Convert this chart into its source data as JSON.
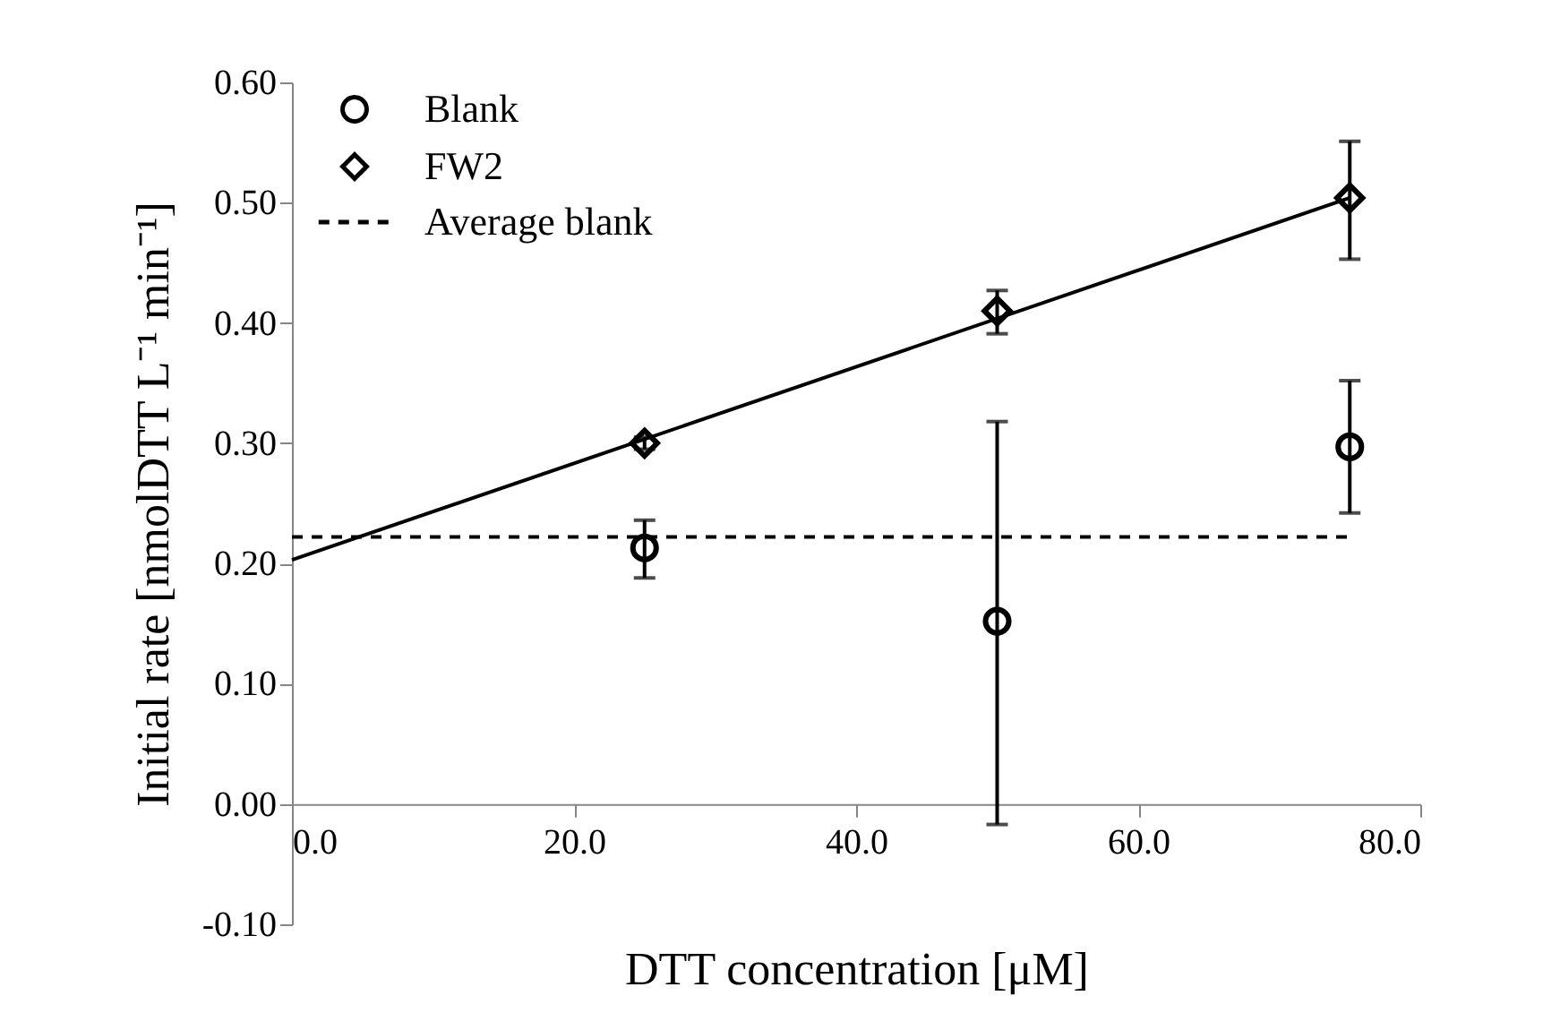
{
  "chart_data": {
    "type": "scatter",
    "xlabel": "DTT concentration [μM]",
    "ylabel": "Initial rate [nmolDTT L⁻¹ min⁻¹]",
    "xlim": [
      0,
      80
    ],
    "ylim": [
      -0.1,
      0.6
    ],
    "xticks": [
      {
        "value": 0,
        "label": "0.0"
      },
      {
        "value": 20,
        "label": "20.0"
      },
      {
        "value": 40,
        "label": "40.0"
      },
      {
        "value": 60,
        "label": "60.0"
      },
      {
        "value": 80,
        "label": "80.0"
      }
    ],
    "yticks": [
      {
        "value": -0.1,
        "label": "-0.10"
      },
      {
        "value": 0,
        "label": "0.00"
      },
      {
        "value": 0.1,
        "label": "0.10"
      },
      {
        "value": 0.2,
        "label": "0.20"
      },
      {
        "value": 0.3,
        "label": "0.30"
      },
      {
        "value": 0.4,
        "label": "0.40"
      },
      {
        "value": 0.5,
        "label": "0.50"
      },
      {
        "value": 0.6,
        "label": "0.60"
      }
    ],
    "series": [
      {
        "name": "Blank",
        "color": "#000000",
        "marker": "circle",
        "x": [
          25,
          50,
          75
        ],
        "values": [
          0.213,
          0.152,
          0.297
        ],
        "errors": [
          [
            0.188,
            0.236
          ],
          [
            -0.017,
            0.318
          ],
          [
            0.242,
            0.352
          ]
        ]
      },
      {
        "name": "FW2",
        "color": "#000000",
        "marker": "diamond",
        "x": [
          25,
          50,
          75
        ],
        "values": [
          0.3,
          0.41,
          0.504
        ],
        "errors": [
          [
            0.295,
            0.305
          ],
          [
            0.391,
            0.427
          ],
          [
            0.453,
            0.551
          ]
        ]
      },
      {
        "type": "line",
        "color": "#000000",
        "marker": "none",
        "line_style": "solid",
        "x": [
          0,
          75
        ],
        "values": [
          0.203,
          0.504
        ]
      },
      {
        "type": "line",
        "name": "Average blank",
        "color": "#000000",
        "marker": "none",
        "line_style": "dashed",
        "x": [
          0,
          75
        ],
        "values": [
          0.222,
          0.222
        ]
      }
    ],
    "legend": "top left",
    "grid": false
  }
}
